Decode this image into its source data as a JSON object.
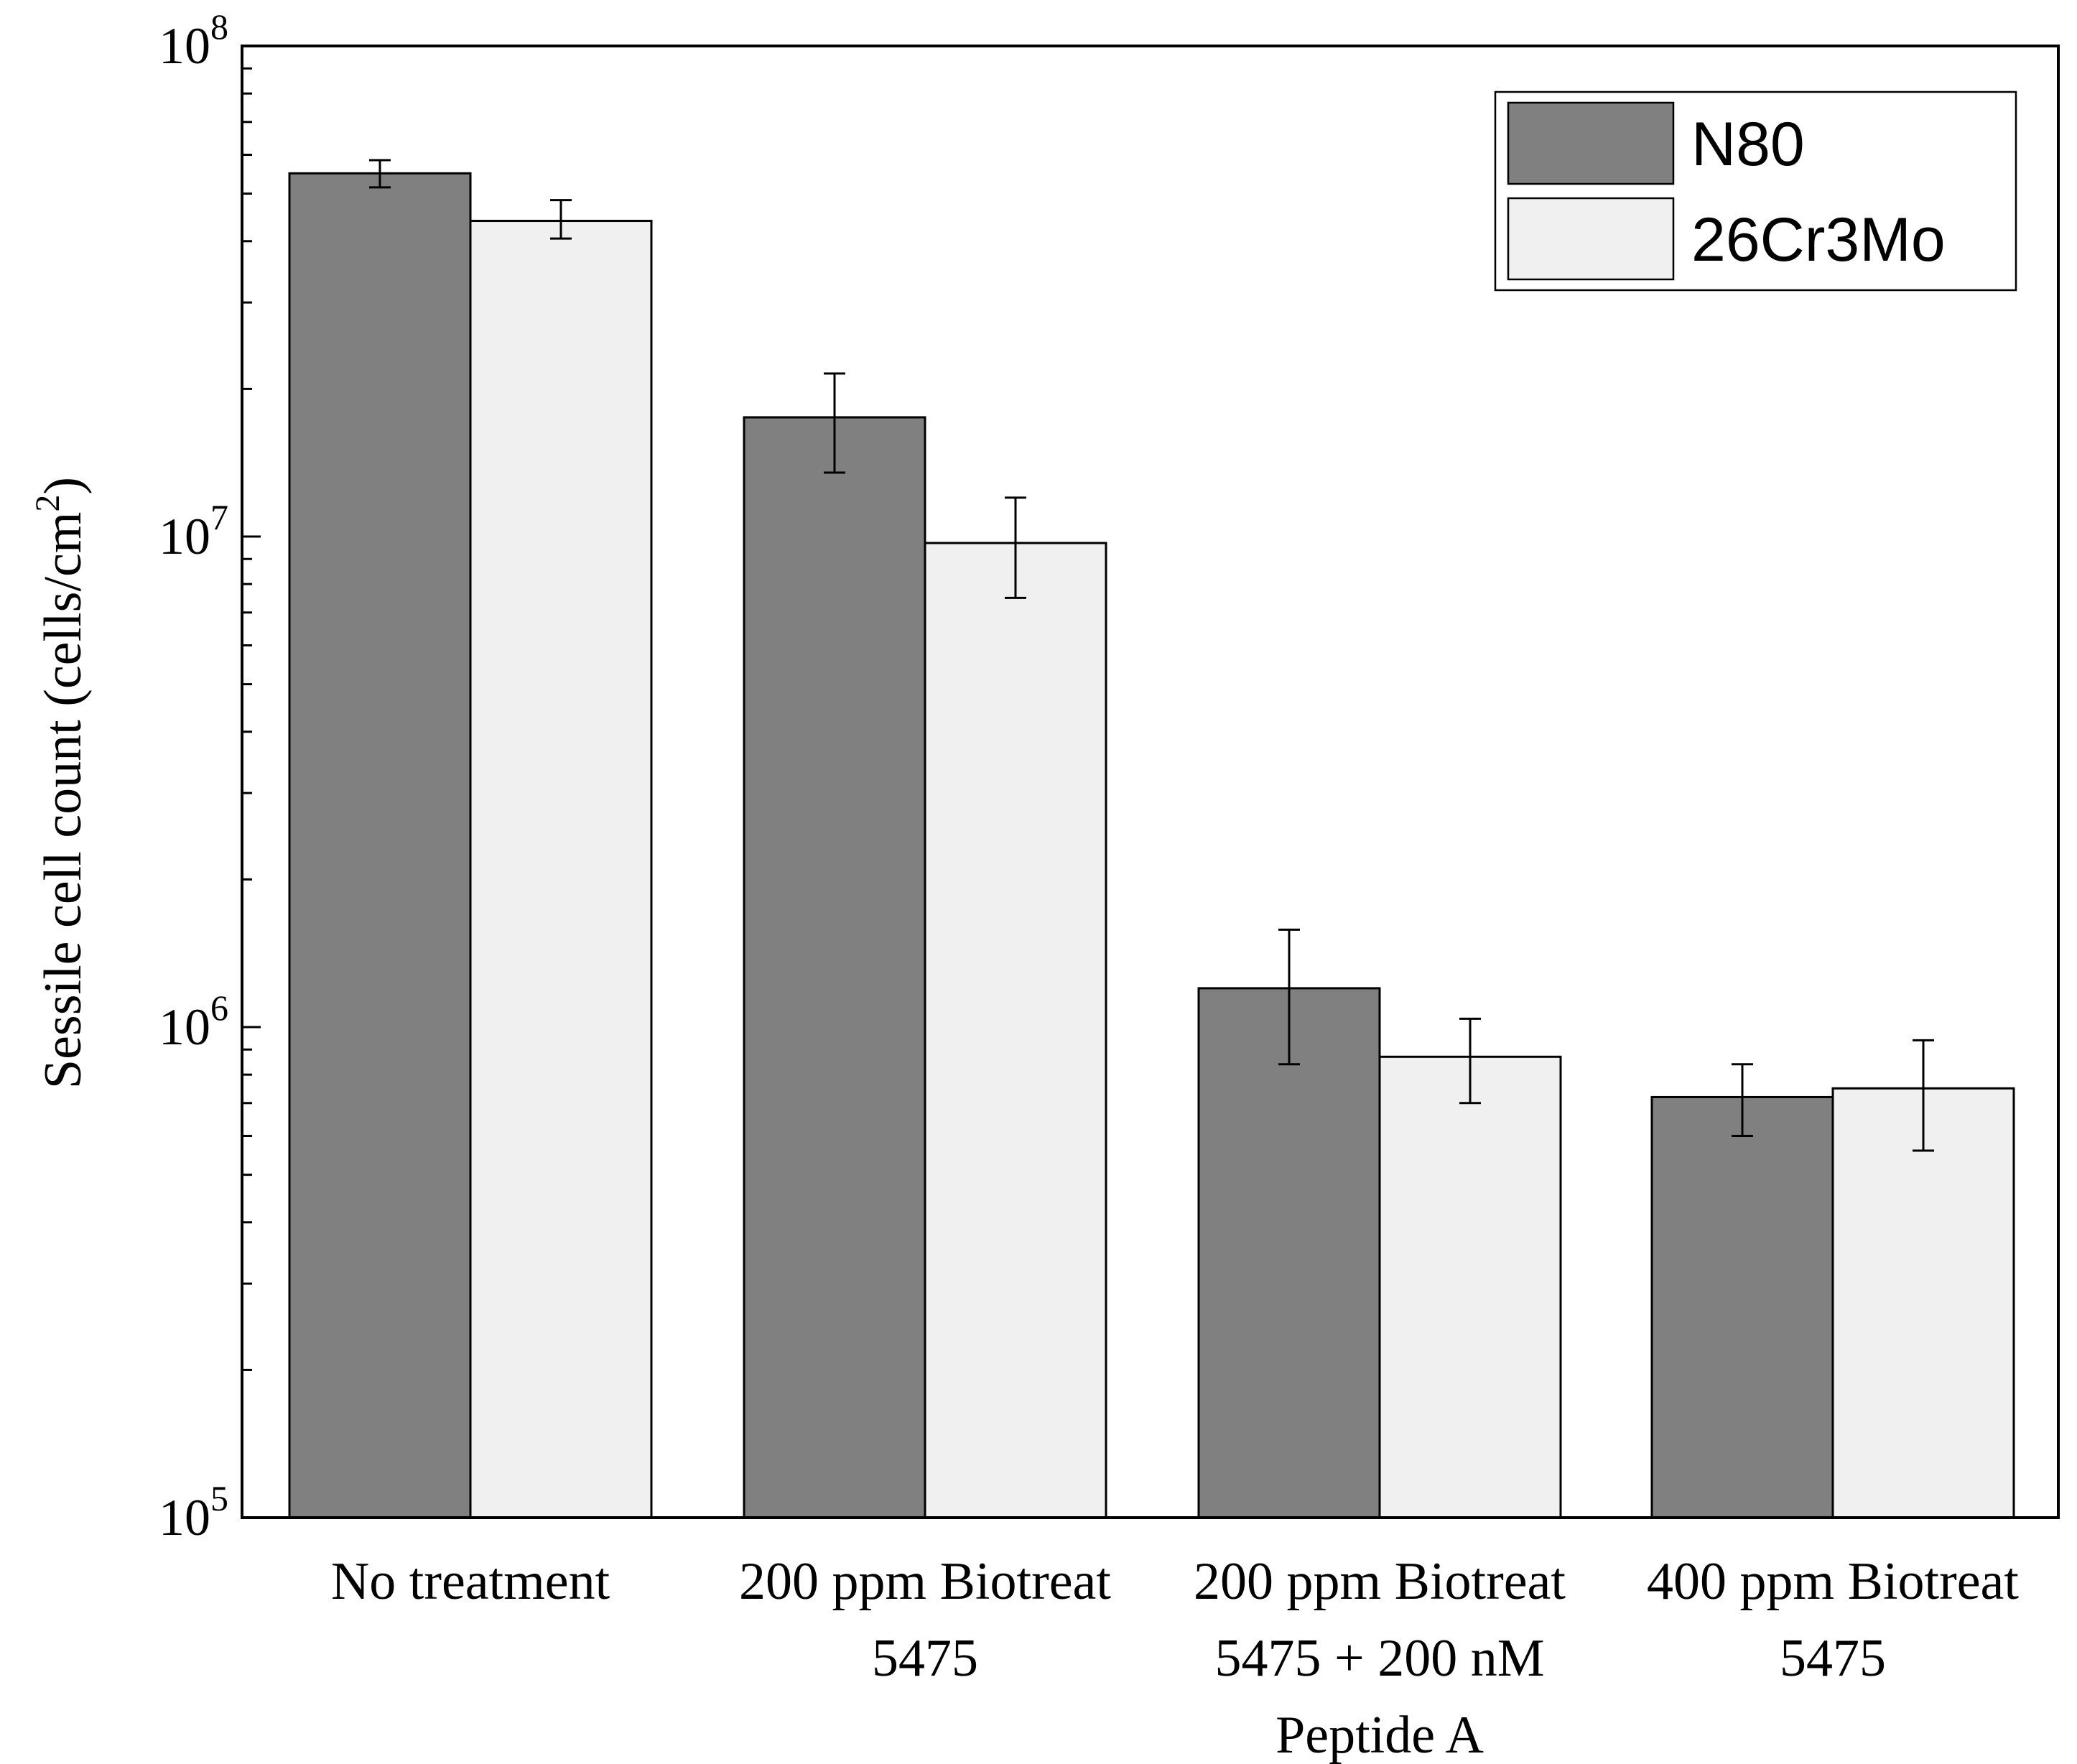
{
  "chart_data": {
    "type": "bar",
    "title": "",
    "xlabel": "",
    "ylabel": {
      "main": "Sessile cell count (cells/cm",
      "superscript": "2",
      "close": ")"
    },
    "yscale": "log",
    "ylim": [
      100000,
      100000000
    ],
    "y_ticks": [
      {
        "value": 100000,
        "base": "10",
        "exp": "5"
      },
      {
        "value": 1000000,
        "base": "10",
        "exp": "6"
      },
      {
        "value": 10000000,
        "base": "10",
        "exp": "7"
      },
      {
        "value": 100000000,
        "base": "10",
        "exp": "8"
      }
    ],
    "categories": [
      [
        "No treatment"
      ],
      [
        "200 ppm Biotreat",
        "5475"
      ],
      [
        "200 ppm Biotreat",
        "5475 + 200 nM",
        "Peptide A"
      ],
      [
        "400 ppm Biotreat",
        "5475"
      ]
    ],
    "series": [
      {
        "name": "N80",
        "color": "#808080",
        "values": [
          55000000,
          17500000,
          1200000,
          720000
        ],
        "error_low": [
          51500000,
          13500000,
          840000,
          600000
        ],
        "error_high": [
          58500000,
          21500000,
          1580000,
          840000
        ]
      },
      {
        "name": "26Cr3Mo",
        "color": "#f0f0f0",
        "values": [
          44000000,
          9700000,
          870000,
          750000
        ],
        "error_low": [
          40500000,
          7500000,
          700000,
          560000
        ],
        "error_high": [
          48500000,
          12000000,
          1040000,
          940000
        ]
      }
    ],
    "legend_position": "top-right",
    "grid": false
  }
}
